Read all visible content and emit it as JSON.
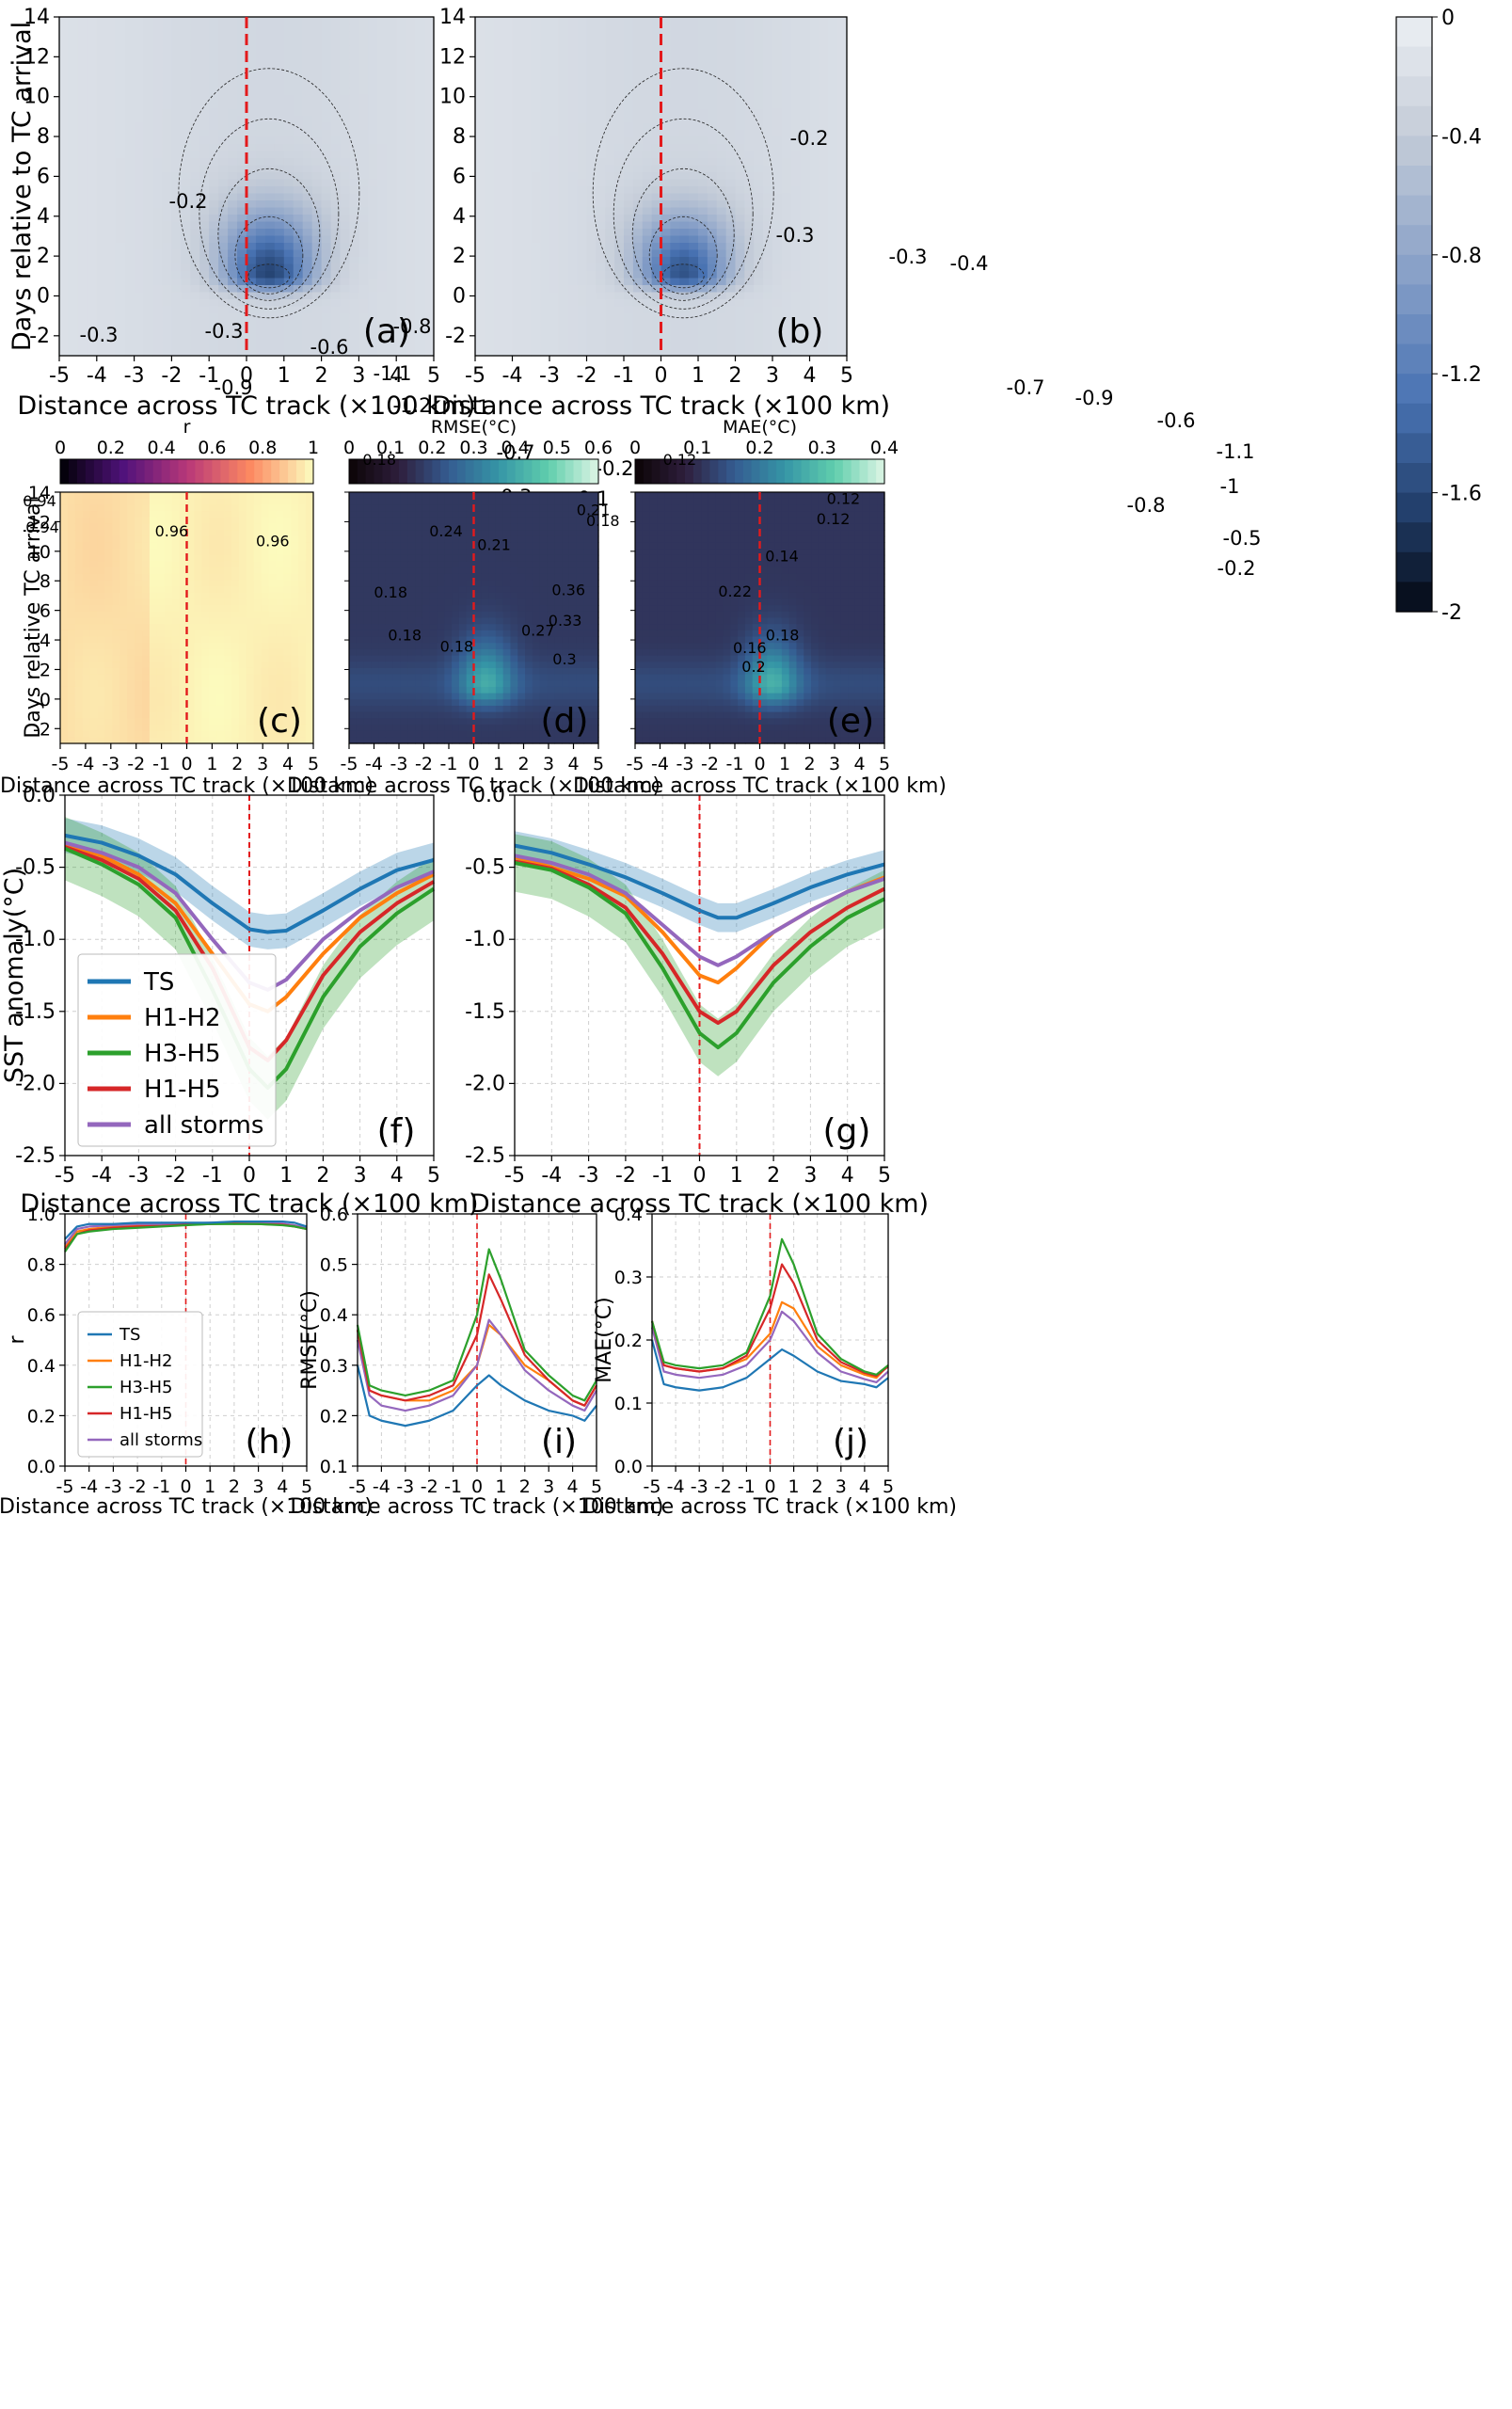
{
  "chart_data": [
    {
      "id": "a",
      "type": "heatmap",
      "panel_label": "(a)",
      "xlabel": "Distance across TC track (×100 km)",
      "ylabel": "Days relative to TC arrival",
      "xlim": [
        -5,
        5
      ],
      "ylim": [
        -3,
        14
      ],
      "x_ticks": [
        "-5",
        "-4",
        "-3",
        "-2",
        "-1",
        "0",
        "1",
        "2",
        "3",
        "4",
        "5"
      ],
      "y_ticks": [
        "-2",
        "0",
        "2",
        "4",
        "6",
        "8",
        "10",
        "12",
        "14"
      ],
      "center": [
        0.6,
        1.0
      ],
      "peak": -1.35,
      "colormap": "blues_r",
      "vmin": -2,
      "vmax": 0,
      "contour_labels": [
        "-0.2",
        "-0.3",
        "-0.3",
        "-0.6",
        "-0.8",
        "-0.5",
        "-0.9",
        "-1.1",
        "-1.2",
        "-1",
        "-0.7",
        "-0.3",
        "-0.4",
        "-0.1",
        "-0.2",
        "-0.2"
      ]
    },
    {
      "id": "b",
      "type": "heatmap",
      "panel_label": "(b)",
      "xlabel": "Distance across TC track (×100 km)",
      "xlim": [
        -5,
        5
      ],
      "ylim": [
        -3,
        14
      ],
      "x_ticks": [
        "-5",
        "-4",
        "-3",
        "-2",
        "-1",
        "0",
        "1",
        "2",
        "3",
        "4",
        "5"
      ],
      "y_ticks": [
        "-2",
        "0",
        "2",
        "4",
        "6",
        "8",
        "10",
        "12",
        "14"
      ],
      "center": [
        0.6,
        1.0
      ],
      "peak": -1.25,
      "colormap": "blues_r",
      "vmin": -2,
      "vmax": 0,
      "colorbar_ticks": [
        "0",
        "-0.4",
        "-0.8",
        "-1.2",
        "-1.6",
        "-2"
      ],
      "contour_labels": [
        "-0.2",
        "-0.3",
        "-0.3",
        "-0.4",
        "-0.7",
        "-0.9",
        "-0.6",
        "-1.1",
        "-1",
        "-0.8",
        "-0.5",
        "-0.3",
        "-0.2",
        "-0.1"
      ]
    },
    {
      "id": "c",
      "type": "heatmap",
      "panel_label": "(c)",
      "colorbar_title": "r",
      "xlabel": "Distance across TC track (×100 km)",
      "ylabel": "Days relative TC arrival",
      "xlim": [
        -5,
        5
      ],
      "ylim": [
        -3,
        14
      ],
      "x_ticks": [
        "-5",
        "-4",
        "-3",
        "-2",
        "-1",
        "0",
        "1",
        "2",
        "3",
        "4",
        "5"
      ],
      "y_ticks": [
        "-2",
        "0",
        "2",
        "4",
        "6",
        "8",
        "10",
        "12",
        "14"
      ],
      "colorbar_ticks": [
        "0",
        "0.2",
        "0.4",
        "0.6",
        "0.8",
        "1"
      ],
      "contour_labels": [
        "0.94",
        "0.94",
        "0.96",
        "0.96"
      ]
    },
    {
      "id": "d",
      "type": "heatmap",
      "panel_label": "(d)",
      "colorbar_title": "RMSE(°C)",
      "xlabel": "Distance across TC track (×100 km)",
      "xlim": [
        -5,
        5
      ],
      "ylim": [
        -3,
        14
      ],
      "x_ticks": [
        "-5",
        "-4",
        "-3",
        "-2",
        "-1",
        "0",
        "1",
        "2",
        "3",
        "4",
        "5"
      ],
      "colorbar_ticks": [
        "0",
        "0.1",
        "0.2",
        "0.3",
        "0.4",
        "0.5",
        "0.6"
      ],
      "contour_labels": [
        "0.18",
        "0.18",
        "0.24",
        "0.21",
        "0.21",
        "0.36",
        "0.33",
        "0.27",
        "0.3",
        "0.18",
        "0.18",
        "0.18"
      ]
    },
    {
      "id": "e",
      "type": "heatmap",
      "panel_label": "(e)",
      "colorbar_title": "MAE(°C)",
      "xlabel": "Distance across TC track (×100 km)",
      "xlim": [
        -5,
        5
      ],
      "ylim": [
        -3,
        14
      ],
      "x_ticks": [
        "-5",
        "-4",
        "-3",
        "-2",
        "-1",
        "0",
        "1",
        "2",
        "3",
        "4",
        "5"
      ],
      "colorbar_ticks": [
        "0",
        "0.1",
        "0.2",
        "0.3",
        "0.4"
      ],
      "contour_labels": [
        "0.12",
        "0.12",
        "0.14",
        "0.22",
        "0.18",
        "0.16",
        "0.2",
        "0.12"
      ]
    },
    {
      "id": "f",
      "type": "line",
      "panel_label": "(f)",
      "xlabel": "Distance across TC track (×100 km)",
      "ylabel": "SST anomaly(°C)",
      "xlim": [
        -5,
        5
      ],
      "ylim": [
        -2.5,
        0.0
      ],
      "x_ticks": [
        "-5",
        "-4",
        "-3",
        "-2",
        "-1",
        "0",
        "1",
        "2",
        "3",
        "4",
        "5"
      ],
      "y_ticks": [
        "0.0",
        "-0.5",
        "-1.0",
        "-1.5",
        "-2.0",
        "-2.5"
      ],
      "legend": "lower-left",
      "x": [
        -5,
        -4,
        -3,
        -2,
        -1,
        0,
        0.5,
        1,
        2,
        3,
        4,
        5
      ],
      "series": [
        {
          "name": "TS",
          "color": "#1f77b4",
          "values": [
            -0.28,
            -0.33,
            -0.42,
            -0.55,
            -0.75,
            -0.93,
            -0.95,
            -0.94,
            -0.8,
            -0.65,
            -0.52,
            -0.45
          ]
        },
        {
          "name": "H1-H2",
          "color": "#ff7f0e",
          "values": [
            -0.34,
            -0.42,
            -0.55,
            -0.75,
            -1.1,
            -1.45,
            -1.5,
            -1.4,
            -1.1,
            -0.85,
            -0.68,
            -0.55
          ]
        },
        {
          "name": "H3-H5",
          "color": "#2ca02c",
          "values": [
            -0.37,
            -0.48,
            -0.62,
            -0.85,
            -1.35,
            -1.9,
            -2.03,
            -1.9,
            -1.4,
            -1.05,
            -0.82,
            -0.65
          ]
        },
        {
          "name": "H1-H5",
          "color": "#d62728",
          "values": [
            -0.36,
            -0.45,
            -0.58,
            -0.8,
            -1.2,
            -1.75,
            -1.84,
            -1.7,
            -1.25,
            -0.95,
            -0.75,
            -0.6
          ]
        },
        {
          "name": "all storms",
          "color": "#9467bd",
          "values": [
            -0.33,
            -0.4,
            -0.5,
            -0.68,
            -1.0,
            -1.3,
            -1.35,
            -1.28,
            -1.0,
            -0.8,
            -0.64,
            -0.53
          ]
        }
      ]
    },
    {
      "id": "g",
      "type": "line",
      "panel_label": "(g)",
      "xlabel": "Distance across TC track (×100 km)",
      "xlim": [
        -5,
        5
      ],
      "ylim": [
        -2.5,
        0.0
      ],
      "x_ticks": [
        "-5",
        "-4",
        "-3",
        "-2",
        "-1",
        "0",
        "1",
        "2",
        "3",
        "4",
        "5"
      ],
      "y_ticks": [
        "0.0",
        "-0.5",
        "-1.0",
        "-1.5",
        "-2.0",
        "-2.5"
      ],
      "x": [
        -5,
        -4,
        -3,
        -2,
        -1,
        0,
        0.5,
        1,
        2,
        3,
        4,
        5
      ],
      "series": [
        {
          "name": "TS",
          "color": "#1f77b4",
          "values": [
            -0.35,
            -0.4,
            -0.48,
            -0.57,
            -0.68,
            -0.8,
            -0.85,
            -0.85,
            -0.75,
            -0.64,
            -0.55,
            -0.48
          ]
        },
        {
          "name": "H1-H2",
          "color": "#ff7f0e",
          "values": [
            -0.43,
            -0.5,
            -0.58,
            -0.7,
            -0.95,
            -1.25,
            -1.3,
            -1.2,
            -0.95,
            -0.8,
            -0.67,
            -0.57
          ]
        },
        {
          "name": "H3-H5",
          "color": "#2ca02c",
          "values": [
            -0.47,
            -0.52,
            -0.64,
            -0.82,
            -1.2,
            -1.65,
            -1.75,
            -1.65,
            -1.3,
            -1.05,
            -0.85,
            -0.72
          ]
        },
        {
          "name": "H1-H5",
          "color": "#d62728",
          "values": [
            -0.46,
            -0.51,
            -0.62,
            -0.78,
            -1.1,
            -1.5,
            -1.58,
            -1.5,
            -1.18,
            -0.95,
            -0.78,
            -0.65
          ]
        },
        {
          "name": "all storms",
          "color": "#9467bd",
          "values": [
            -0.42,
            -0.47,
            -0.55,
            -0.68,
            -0.9,
            -1.12,
            -1.18,
            -1.12,
            -0.95,
            -0.8,
            -0.67,
            -0.58
          ]
        }
      ]
    },
    {
      "id": "h",
      "type": "line",
      "panel_label": "(h)",
      "xlabel": "Distance across TC track (×100 km)",
      "ylabel": "r",
      "xlim": [
        -5,
        5
      ],
      "ylim": [
        0.0,
        1.0
      ],
      "x_ticks": [
        "-5",
        "-4",
        "-3",
        "-2",
        "-1",
        "0",
        "1",
        "2",
        "3",
        "4",
        "5"
      ],
      "y_ticks": [
        "0.0",
        "0.2",
        "0.4",
        "0.6",
        "0.8",
        "1.0"
      ],
      "legend": "lower-left",
      "x": [
        -5,
        -4.5,
        -4,
        -3,
        -2,
        -1,
        0,
        1,
        2,
        3,
        4,
        4.5,
        5
      ],
      "series": [
        {
          "name": "TS",
          "color": "#1f77b4",
          "values": [
            0.9,
            0.95,
            0.96,
            0.96,
            0.965,
            0.965,
            0.965,
            0.965,
            0.97,
            0.97,
            0.97,
            0.965,
            0.95
          ]
        },
        {
          "name": "H1-H2",
          "color": "#ff7f0e",
          "values": [
            0.87,
            0.93,
            0.94,
            0.95,
            0.955,
            0.955,
            0.96,
            0.96,
            0.965,
            0.965,
            0.96,
            0.955,
            0.94
          ]
        },
        {
          "name": "H3-H5",
          "color": "#2ca02c",
          "values": [
            0.85,
            0.92,
            0.93,
            0.94,
            0.945,
            0.95,
            0.955,
            0.96,
            0.96,
            0.96,
            0.955,
            0.95,
            0.94
          ]
        },
        {
          "name": "H1-H5",
          "color": "#d62728",
          "values": [
            0.86,
            0.92,
            0.935,
            0.945,
            0.95,
            0.952,
            0.957,
            0.96,
            0.962,
            0.96,
            0.957,
            0.95,
            0.94
          ]
        },
        {
          "name": "all storms",
          "color": "#9467bd",
          "values": [
            0.88,
            0.94,
            0.95,
            0.955,
            0.96,
            0.96,
            0.962,
            0.965,
            0.967,
            0.965,
            0.962,
            0.955,
            0.945
          ]
        }
      ]
    },
    {
      "id": "i",
      "type": "line",
      "panel_label": "(i)",
      "xlabel": "Distance across TC track (×100 km)",
      "ylabel": "RMSE(°C)",
      "xlim": [
        -5,
        5
      ],
      "ylim": [
        0.1,
        0.6
      ],
      "x_ticks": [
        "-5",
        "-4",
        "-3",
        "-2",
        "-1",
        "0",
        "1",
        "2",
        "3",
        "4",
        "5"
      ],
      "y_ticks": [
        "0.1",
        "0.2",
        "0.3",
        "0.4",
        "0.5",
        "0.6"
      ],
      "x": [
        -5,
        -4.5,
        -4,
        -3,
        -2,
        -1,
        0,
        0.5,
        1,
        2,
        3,
        4,
        4.5,
        5
      ],
      "series": [
        {
          "name": "TS",
          "color": "#1f77b4",
          "values": [
            0.3,
            0.2,
            0.19,
            0.18,
            0.19,
            0.21,
            0.26,
            0.28,
            0.26,
            0.23,
            0.21,
            0.2,
            0.19,
            0.22
          ]
        },
        {
          "name": "H1-H2",
          "color": "#ff7f0e",
          "values": [
            0.37,
            0.25,
            0.24,
            0.23,
            0.23,
            0.25,
            0.3,
            0.38,
            0.36,
            0.3,
            0.27,
            0.23,
            0.22,
            0.26
          ]
        },
        {
          "name": "H3-H5",
          "color": "#2ca02c",
          "values": [
            0.38,
            0.26,
            0.25,
            0.24,
            0.25,
            0.27,
            0.4,
            0.53,
            0.47,
            0.33,
            0.28,
            0.24,
            0.23,
            0.27
          ]
        },
        {
          "name": "H1-H5",
          "color": "#d62728",
          "values": [
            0.37,
            0.25,
            0.24,
            0.23,
            0.24,
            0.26,
            0.36,
            0.48,
            0.43,
            0.32,
            0.27,
            0.23,
            0.22,
            0.26
          ]
        },
        {
          "name": "all storms",
          "color": "#9467bd",
          "values": [
            0.35,
            0.24,
            0.22,
            0.21,
            0.22,
            0.24,
            0.3,
            0.39,
            0.36,
            0.29,
            0.25,
            0.22,
            0.21,
            0.25
          ]
        }
      ]
    },
    {
      "id": "j",
      "type": "line",
      "panel_label": "(j)",
      "xlabel": "Distance across TC track (×100 km)",
      "ylabel": "MAE(°C)",
      "xlim": [
        -5,
        5
      ],
      "ylim": [
        0.0,
        0.4
      ],
      "x_ticks": [
        "-5",
        "-4",
        "-3",
        "-2",
        "-1",
        "0",
        "1",
        "2",
        "3",
        "4",
        "5"
      ],
      "y_ticks": [
        "0.0",
        "0.1",
        "0.2",
        "0.3",
        "0.4"
      ],
      "x": [
        -5,
        -4.5,
        -4,
        -3,
        -2,
        -1,
        0,
        0.5,
        1,
        2,
        3,
        4,
        4.5,
        5
      ],
      "series": [
        {
          "name": "TS",
          "color": "#1f77b4",
          "values": [
            0.2,
            0.13,
            0.125,
            0.12,
            0.125,
            0.14,
            0.17,
            0.185,
            0.175,
            0.15,
            0.135,
            0.13,
            0.125,
            0.14
          ]
        },
        {
          "name": "H1-H2",
          "color": "#ff7f0e",
          "values": [
            0.23,
            0.16,
            0.155,
            0.15,
            0.155,
            0.17,
            0.21,
            0.26,
            0.25,
            0.19,
            0.16,
            0.145,
            0.14,
            0.16
          ]
        },
        {
          "name": "H3-H5",
          "color": "#2ca02c",
          "values": [
            0.23,
            0.165,
            0.16,
            0.155,
            0.16,
            0.18,
            0.27,
            0.36,
            0.32,
            0.21,
            0.17,
            0.15,
            0.145,
            0.16
          ]
        },
        {
          "name": "H1-H5",
          "color": "#d62728",
          "values": [
            0.23,
            0.16,
            0.155,
            0.15,
            0.155,
            0.175,
            0.25,
            0.32,
            0.29,
            0.2,
            0.165,
            0.148,
            0.143,
            0.158
          ]
        },
        {
          "name": "all storms",
          "color": "#9467bd",
          "values": [
            0.22,
            0.15,
            0.145,
            0.14,
            0.145,
            0.16,
            0.2,
            0.245,
            0.23,
            0.18,
            0.15,
            0.138,
            0.133,
            0.15
          ]
        }
      ]
    }
  ]
}
